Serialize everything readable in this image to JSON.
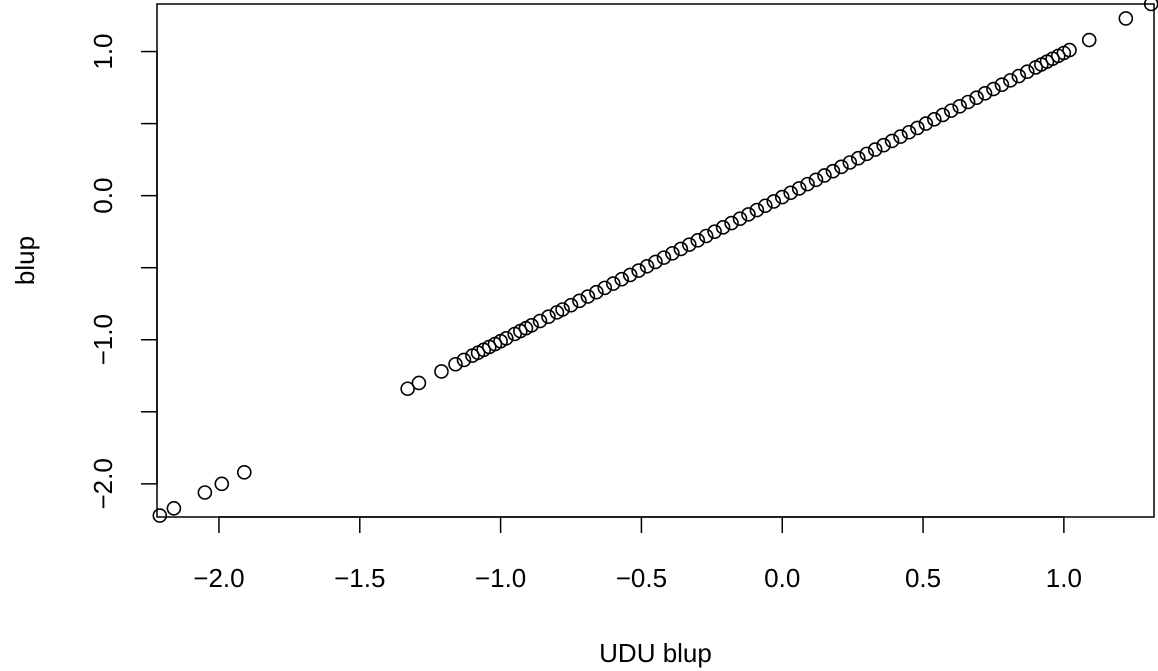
{
  "chart_data": {
    "type": "scatter",
    "title": "",
    "xlabel": "UDU blup",
    "ylabel": "blup",
    "xlim": [
      -2.22,
      1.32
    ],
    "ylim": [
      -2.23,
      1.33
    ],
    "xticks": [
      -2.0,
      -1.5,
      -1.0,
      -0.5,
      0.0,
      0.5,
      1.0
    ],
    "yticks": [
      -2.0,
      -1.5,
      -1.0,
      -0.5,
      0.0,
      0.5,
      1.0
    ],
    "xtick_labels": [
      "−2.0",
      "−1.5",
      "−1.0",
      "−0.5",
      "0.0",
      "0.5",
      "1.0"
    ],
    "ytick_labels": [
      "−2.0",
      "",
      "−1.0",
      "",
      "0.0",
      "",
      "1.0"
    ],
    "grid": false,
    "marker": "open-circle",
    "marker_color": "#000000",
    "series": [
      {
        "points": [
          [
            -2.21,
            -2.22
          ],
          [
            -2.16,
            -2.17
          ],
          [
            -2.05,
            -2.06
          ],
          [
            -1.99,
            -2.0
          ],
          [
            -1.91,
            -1.92
          ],
          [
            -1.33,
            -1.34
          ],
          [
            -1.29,
            -1.3
          ],
          [
            -1.21,
            -1.22
          ],
          [
            -1.16,
            -1.17
          ],
          [
            -1.13,
            -1.14
          ],
          [
            -1.1,
            -1.11
          ],
          [
            -1.08,
            -1.09
          ],
          [
            -1.06,
            -1.07
          ],
          [
            -1.04,
            -1.05
          ],
          [
            -1.02,
            -1.03
          ],
          [
            -1.0,
            -1.01
          ],
          [
            -0.98,
            -0.99
          ],
          [
            -0.95,
            -0.96
          ],
          [
            -0.93,
            -0.94
          ],
          [
            -0.91,
            -0.92
          ],
          [
            -0.89,
            -0.9
          ],
          [
            -0.86,
            -0.87
          ],
          [
            -0.83,
            -0.84
          ],
          [
            -0.8,
            -0.81
          ],
          [
            -0.78,
            -0.79
          ],
          [
            -0.75,
            -0.76
          ],
          [
            -0.72,
            -0.73
          ],
          [
            -0.69,
            -0.7
          ],
          [
            -0.66,
            -0.67
          ],
          [
            -0.63,
            -0.64
          ],
          [
            -0.6,
            -0.61
          ],
          [
            -0.57,
            -0.58
          ],
          [
            -0.54,
            -0.55
          ],
          [
            -0.51,
            -0.52
          ],
          [
            -0.48,
            -0.49
          ],
          [
            -0.45,
            -0.46
          ],
          [
            -0.42,
            -0.43
          ],
          [
            -0.39,
            -0.4
          ],
          [
            -0.36,
            -0.37
          ],
          [
            -0.33,
            -0.34
          ],
          [
            -0.3,
            -0.31
          ],
          [
            -0.27,
            -0.28
          ],
          [
            -0.24,
            -0.25
          ],
          [
            -0.21,
            -0.22
          ],
          [
            -0.18,
            -0.19
          ],
          [
            -0.15,
            -0.16
          ],
          [
            -0.12,
            -0.13
          ],
          [
            -0.09,
            -0.1
          ],
          [
            -0.06,
            -0.07
          ],
          [
            -0.03,
            -0.04
          ],
          [
            0.0,
            -0.01
          ],
          [
            0.03,
            0.02
          ],
          [
            0.06,
            0.05
          ],
          [
            0.09,
            0.08
          ],
          [
            0.12,
            0.11
          ],
          [
            0.15,
            0.14
          ],
          [
            0.18,
            0.17
          ],
          [
            0.21,
            0.2
          ],
          [
            0.24,
            0.23
          ],
          [
            0.27,
            0.26
          ],
          [
            0.3,
            0.29
          ],
          [
            0.33,
            0.32
          ],
          [
            0.36,
            0.35
          ],
          [
            0.39,
            0.38
          ],
          [
            0.42,
            0.41
          ],
          [
            0.45,
            0.44
          ],
          [
            0.48,
            0.47
          ],
          [
            0.51,
            0.5
          ],
          [
            0.54,
            0.53
          ],
          [
            0.57,
            0.56
          ],
          [
            0.6,
            0.59
          ],
          [
            0.63,
            0.62
          ],
          [
            0.66,
            0.65
          ],
          [
            0.69,
            0.68
          ],
          [
            0.72,
            0.71
          ],
          [
            0.75,
            0.74
          ],
          [
            0.78,
            0.77
          ],
          [
            0.81,
            0.8
          ],
          [
            0.84,
            0.83
          ],
          [
            0.87,
            0.86
          ],
          [
            0.9,
            0.89
          ],
          [
            0.92,
            0.91
          ],
          [
            0.94,
            0.93
          ],
          [
            0.96,
            0.95
          ],
          [
            0.98,
            0.97
          ],
          [
            1.0,
            0.99
          ],
          [
            1.02,
            1.01
          ],
          [
            1.09,
            1.08
          ],
          [
            1.22,
            1.23
          ],
          [
            1.31,
            1.33
          ]
        ]
      }
    ]
  }
}
